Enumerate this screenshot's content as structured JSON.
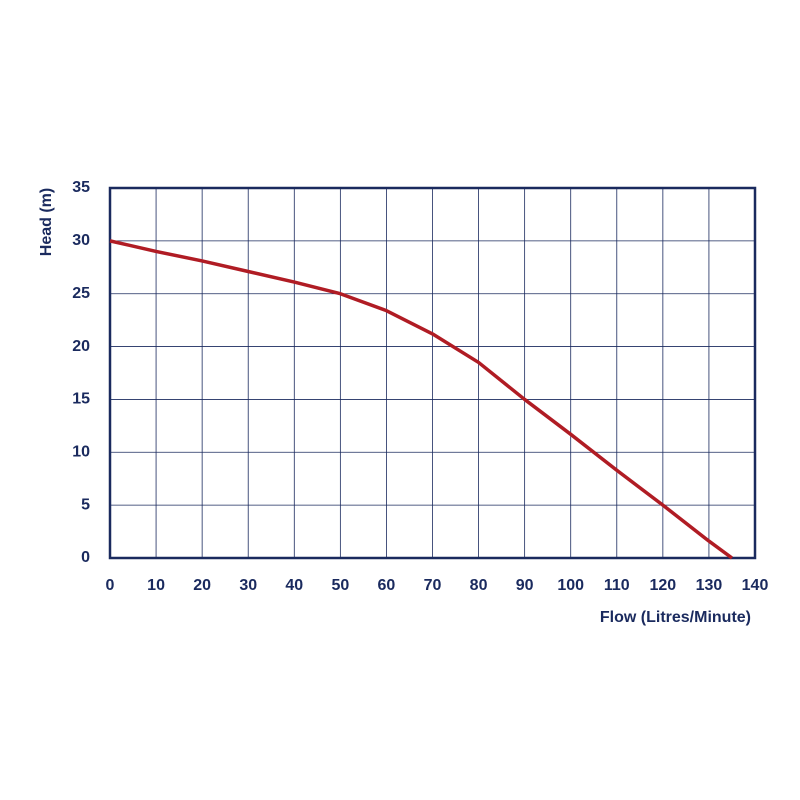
{
  "chart_data": {
    "type": "line",
    "x_label": "Flow (Litres/Minute)",
    "y_label": "Head (m)",
    "series": [
      {
        "color": "#b01c24",
        "x": [
          0,
          10,
          20,
          30,
          40,
          50,
          60,
          70,
          80,
          90,
          100,
          110,
          120,
          130,
          135
        ],
        "values": [
          30,
          29,
          28.1,
          27.1,
          26.1,
          25,
          23.4,
          21.2,
          18.5,
          15,
          11.7,
          8.3,
          5,
          1.6,
          0
        ]
      }
    ],
    "xlim": [
      0,
      140
    ],
    "xticks": [
      0,
      10,
      20,
      30,
      40,
      50,
      60,
      70,
      80,
      90,
      100,
      110,
      120,
      130,
      140
    ],
    "ylim": [
      0,
      35
    ],
    "yticks": [
      0,
      5,
      10,
      15,
      20,
      25,
      30,
      35
    ],
    "grid": true,
    "axis_color": "#1a2a5e"
  }
}
